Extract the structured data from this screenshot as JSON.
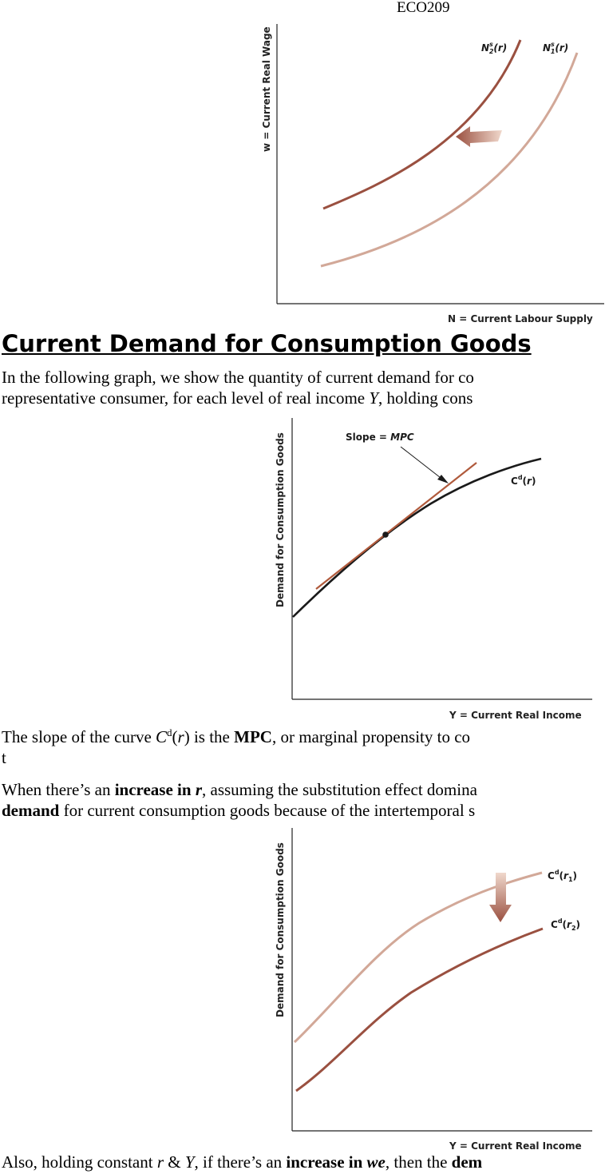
{
  "header": "ECO209",
  "figure1": {
    "y_axis": "w = Current Real Wage",
    "x_axis": "N = Current Labour Supply",
    "curve_new": "N₂ˢ(r)",
    "curve_old": "N₁ˢ(r)"
  },
  "section_heading": "Current Demand for Consumption Goods",
  "para1": {
    "line1": "In the following graph, we show the quantity of current demand for co",
    "line2_a": "representative consumer, for each level of real income ",
    "line2_var": "Y",
    "line2_b": ", holding cons"
  },
  "figure2": {
    "y_axis": "Demand for Consumption Goods",
    "x_axis": "Y = Current Real Income",
    "slope_label": "Slope = MPC",
    "curve": "Cd(r)"
  },
  "para2": {
    "a": "The slope of the curve ",
    "C": "C",
    "sup": "d",
    "r": "r",
    "b": ") is the ",
    "mpc": "MPC",
    "c": ", or marginal propensity to co",
    "line2": "t"
  },
  "para3": {
    "a": "When there’s an ",
    "bold": "increase in ",
    "bold_r": "r",
    "b": ", assuming the substitution effect domina",
    "line2_bold": "demand",
    "line2_b": " for current consumption goods because of the intertemporal s"
  },
  "figure3": {
    "y_axis": "Demand for Consumption Goods",
    "x_axis": "Y = Current Real Income",
    "curve_r1": "Cd(r1)",
    "curve_r2": "Cd(r2)"
  },
  "para4": {
    "a": "Also, holding constant ",
    "r": "r",
    "amp": " & ",
    "Y": "Y",
    "b": ", if there’s an ",
    "bold": "increase in ",
    "bold_we": "we",
    "c": ", then the ",
    "dem": "dem"
  },
  "colors": {
    "dark_curve": "#9a5040",
    "light_curve": "#d2a898",
    "black_curve": "#1a1a1a"
  }
}
